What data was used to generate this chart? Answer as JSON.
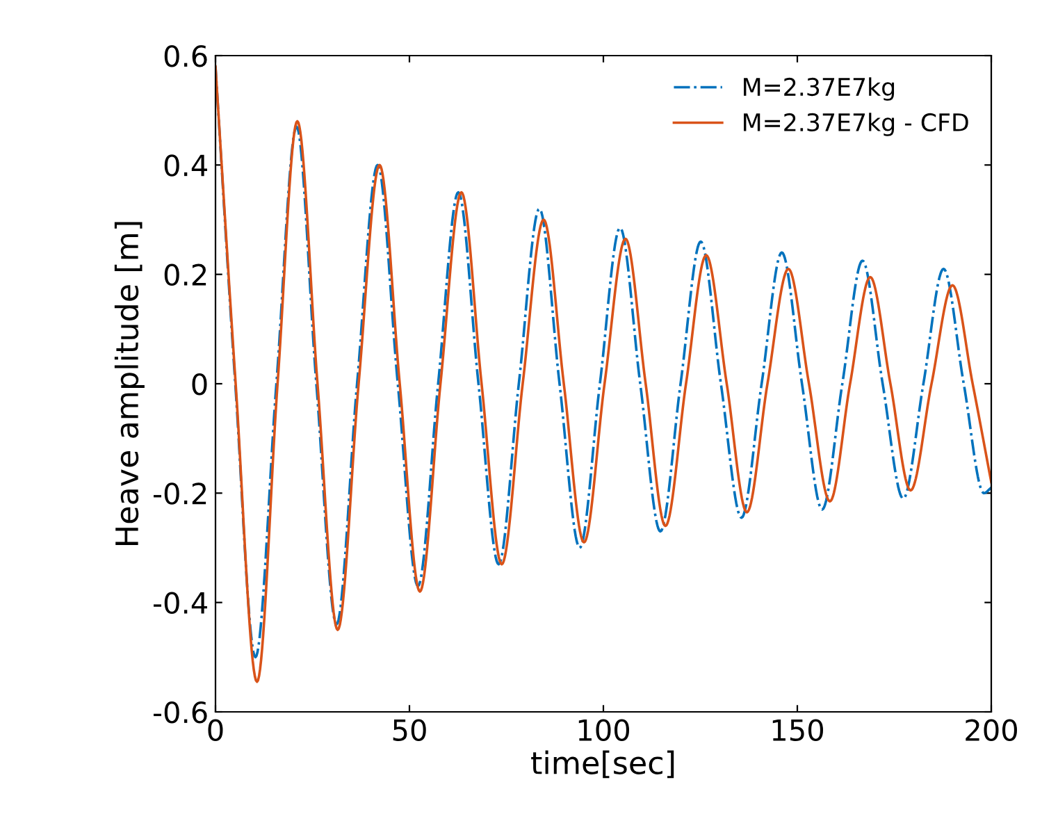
{
  "chart_data": {
    "type": "line",
    "xlabel": "time[sec]",
    "ylabel": "Heave amplitude [m]",
    "xlim": [
      0,
      200
    ],
    "xticks": [
      0,
      50,
      100,
      150,
      200
    ],
    "ylim": [
      -0.6,
      0.6
    ],
    "yticks": [
      {
        "value": -0.6,
        "label": "-0.6"
      },
      {
        "value": -0.4,
        "label": "-0.4"
      },
      {
        "value": -0.2,
        "label": "-0.2"
      },
      0,
      0.2,
      0.4,
      0.6
    ],
    "grid": false,
    "legend": "top right",
    "marker": "none",
    "series": [
      {
        "name": "M=2.37E7kg",
        "color": "#0072bd",
        "line_style": "dashdot",
        "x": [
          0,
          5.1,
          10.3,
          15.7,
          20.9,
          26,
          31.2,
          36.5,
          41.8,
          47,
          52.2,
          57.4,
          62.6,
          67.8,
          73,
          78.2,
          83.5,
          88.7,
          93.9,
          99.1,
          104.3,
          109.5,
          114.7,
          119.9,
          125.1,
          130.3,
          135.6,
          140.8,
          146,
          151.2,
          156.4,
          161.6,
          166.8,
          172,
          177.3,
          182.5,
          187.7,
          192.9,
          198.1,
          200
        ],
        "values": [
          0.58,
          0,
          -0.5,
          0,
          0.47,
          0,
          -0.44,
          0,
          0.4,
          0,
          -0.37,
          0,
          0.35,
          0,
          -0.33,
          0,
          0.32,
          0,
          -0.3,
          0,
          0.285,
          0,
          -0.27,
          0,
          0.26,
          0,
          -0.245,
          0,
          0.24,
          0,
          -0.23,
          0,
          0.225,
          0,
          -0.21,
          0,
          0.21,
          0,
          -0.2,
          -0.19
        ]
      },
      {
        "name": "M=2.37E7kg - CFD",
        "color": "#d95319",
        "line_style": "solid",
        "x": [
          0,
          5.2,
          10.7,
          16,
          21.1,
          26.3,
          31.5,
          36.9,
          42.3,
          47.5,
          52.7,
          58,
          63.4,
          68.6,
          73.8,
          79.2,
          84.6,
          89.8,
          95,
          100.3,
          105.7,
          110.9,
          116,
          121.3,
          126.5,
          131.8,
          137,
          142.3,
          147.7,
          153,
          158.4,
          163.6,
          168.8,
          174,
          179.2,
          184.6,
          190,
          195.2,
          200
        ],
        "values": [
          0.58,
          0,
          -0.545,
          0,
          0.48,
          0,
          -0.45,
          0,
          0.4,
          0,
          -0.38,
          0,
          0.35,
          0,
          -0.33,
          0,
          0.3,
          0,
          -0.29,
          0,
          0.265,
          0,
          -0.26,
          0,
          0.235,
          0,
          -0.235,
          0,
          0.21,
          0,
          -0.215,
          0,
          0.195,
          0,
          -0.195,
          0,
          0.18,
          0,
          -0.18
        ]
      }
    ]
  }
}
